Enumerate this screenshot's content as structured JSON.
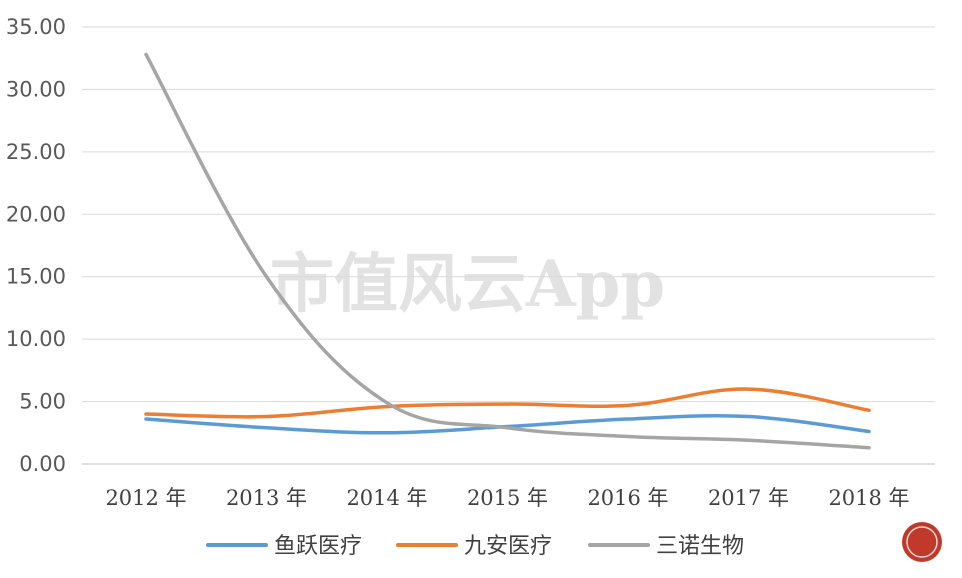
{
  "watermark": "市值风云App",
  "chart_data": {
    "type": "line",
    "categories": [
      "2012 年",
      "2013 年",
      "2014 年",
      "2015 年",
      "2016 年",
      "2017 年",
      "2018 年"
    ],
    "ylim": [
      0,
      35
    ],
    "y_ticks": [
      "0.00",
      "5.00",
      "10.00",
      "15.00",
      "20.00",
      "25.00",
      "30.00",
      "35.00"
    ],
    "grid": true,
    "legend_position": "bottom",
    "series": [
      {
        "name": "鱼跃医疗",
        "color": "#5b9bd5",
        "values": [
          3.6,
          2.9,
          2.5,
          3.0,
          3.6,
          3.8,
          2.6
        ]
      },
      {
        "name": "九安医疗",
        "color": "#ed7d31",
        "values": [
          4.0,
          3.8,
          4.6,
          4.8,
          4.7,
          6.0,
          4.3
        ]
      },
      {
        "name": "三诺生物",
        "color": "#a5a5a5",
        "values": [
          32.8,
          15.0,
          4.9,
          2.9,
          2.2,
          1.9,
          1.3
        ]
      }
    ]
  }
}
